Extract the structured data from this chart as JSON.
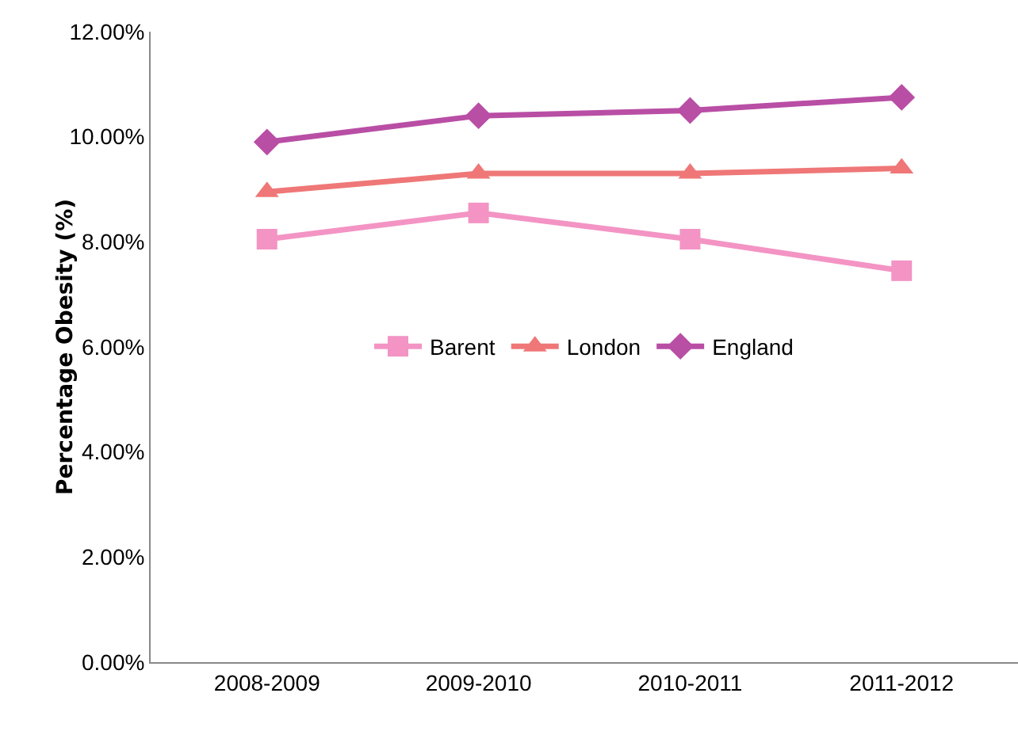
{
  "chart_data": {
    "type": "line",
    "ylabel": "Percentage Obesity (%)",
    "categories": [
      "2008-2009",
      "2009-2010",
      "2010-2011",
      "2011-2012"
    ],
    "series": [
      {
        "name": "Barent",
        "color": "#f394c4",
        "marker": "square",
        "values": [
          8.05,
          8.55,
          8.05,
          7.45
        ]
      },
      {
        "name": "London",
        "color": "#ef7777",
        "marker": "triangle",
        "values": [
          8.95,
          9.3,
          9.3,
          9.4
        ]
      },
      {
        "name": "England",
        "color": "#b94ea5",
        "marker": "diamond",
        "values": [
          9.9,
          10.4,
          10.5,
          10.75
        ]
      }
    ],
    "ylim": [
      0,
      12
    ],
    "yticks": [
      {
        "value": 0,
        "label": "0.00%"
      },
      {
        "value": 2,
        "label": "2.00%"
      },
      {
        "value": 4,
        "label": "4.00%"
      },
      {
        "value": 6,
        "label": "6.00%"
      },
      {
        "value": 8,
        "label": "8.00%"
      },
      {
        "value": 10,
        "label": "10.00%"
      },
      {
        "value": 12,
        "label": "12.00%"
      }
    ],
    "grid": false,
    "legend": "center"
  }
}
